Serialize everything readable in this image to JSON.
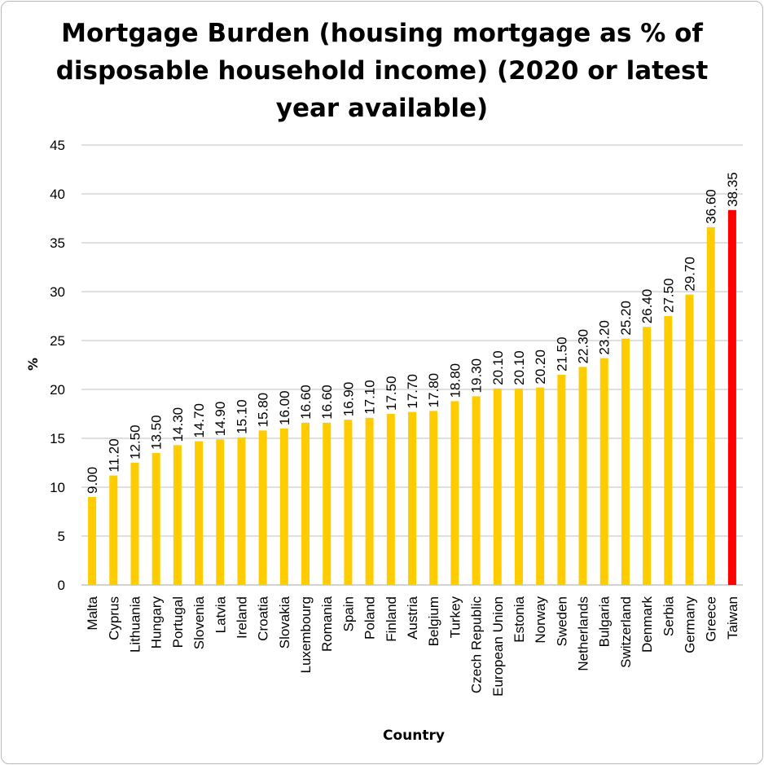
{
  "chart_data": {
    "type": "bar",
    "title": "Mortgage Burden (housing mortgage as % of disposable household income) (2020 or latest year available)",
    "xlabel": "Country",
    "ylabel": "%",
    "ylim": [
      0,
      45
    ],
    "yticks": [
      "0",
      "5",
      "10",
      "15",
      "20",
      "25",
      "30",
      "35",
      "40",
      "45"
    ],
    "grid": true,
    "categories": [
      "Malta",
      "Cyprus",
      "Lithuania",
      "Hungary",
      "Portugal",
      "Slovenia",
      "Latvia",
      "Ireland",
      "Croatia",
      "Slovakia",
      "Luxembourg",
      "Romania",
      "Spain",
      "Poland",
      "Finland",
      "Austria",
      "Belgium",
      "Turkey",
      "Czech Republic",
      "European Union",
      "Estonia",
      "Norway",
      "Sweden",
      "Netherlands",
      "Bulgaria",
      "Switzerland",
      "Denmark",
      "Serbia",
      "Germany",
      "Greece",
      "Taiwan"
    ],
    "values": [
      9.0,
      11.2,
      12.5,
      13.5,
      14.3,
      14.7,
      14.9,
      15.1,
      15.8,
      16.0,
      16.6,
      16.6,
      16.9,
      17.1,
      17.5,
      17.7,
      17.8,
      18.8,
      19.3,
      20.1,
      20.1,
      20.2,
      21.5,
      22.3,
      23.2,
      25.2,
      26.4,
      27.5,
      29.7,
      36.6,
      38.35
    ],
    "value_labels": [
      "9.00",
      "11.20",
      "12.50",
      "13.50",
      "14.30",
      "14.70",
      "14.90",
      "15.10",
      "15.80",
      "16.00",
      "16.60",
      "16.60",
      "16.90",
      "17.10",
      "17.50",
      "17.70",
      "17.80",
      "18.80",
      "19.30",
      "20.10",
      "20.10",
      "20.20",
      "21.50",
      "22.30",
      "23.20",
      "25.20",
      "26.40",
      "27.50",
      "29.70",
      "36.60",
      "38.35"
    ],
    "bar_color": "#FFCC00",
    "highlight_color": "#FF0000",
    "highlight_category": "Taiwan",
    "grid_color": "#BFBFBF"
  }
}
